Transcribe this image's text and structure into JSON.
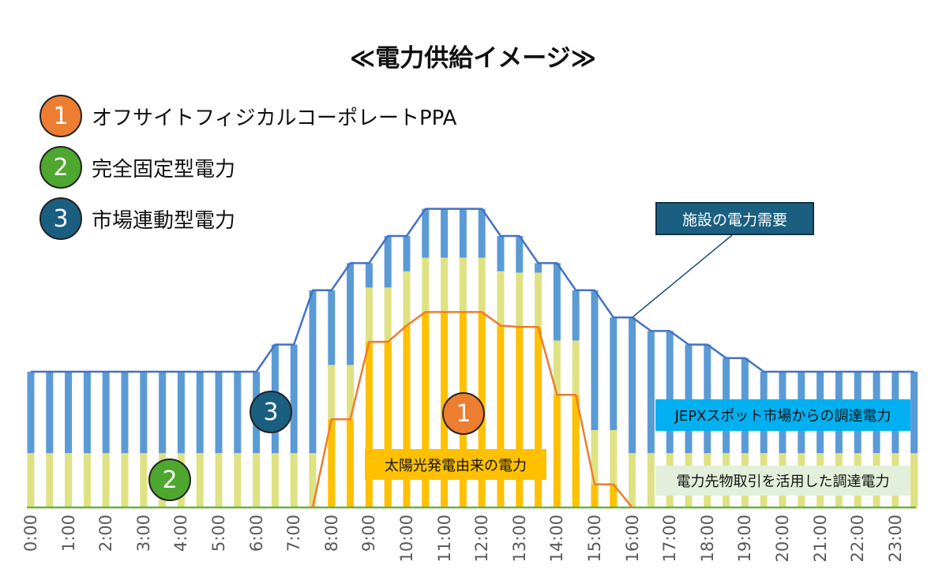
{
  "title": "≪電力供給イメージ≫",
  "legend": [
    {
      "num": "1",
      "label": "オフサイトフィジカルコーポレートPPA",
      "color": "#ed7d31"
    },
    {
      "num": "2",
      "label": "完全固定型電力",
      "color": "#4ea72e"
    },
    {
      "num": "3",
      "label": "市場連動型電力",
      "color": "#1a5f80"
    }
  ],
  "annotations": {
    "demand": "施設の電力需要",
    "spot": "JEPXスポット市場からの調達電力",
    "forward": "電力先物取引を活用した調達電力",
    "solar": "太陽光発電由来の電力"
  },
  "markers": {
    "solar": "1",
    "forward": "2",
    "spot": "3"
  },
  "colors": {
    "spot_bar": "#5b9bd5",
    "forward_bar": "#dfe282",
    "solar_bar": "#ffc000",
    "demand_line": "#4472c4",
    "solar_line": "#ed7d31",
    "baseline": "#70ad47"
  },
  "chart_data": {
    "type": "bar",
    "stacked": true,
    "x": [
      "0:00",
      "0:30",
      "1:00",
      "1:30",
      "2:00",
      "2:30",
      "3:00",
      "3:30",
      "4:00",
      "4:30",
      "5:00",
      "5:30",
      "6:00",
      "6:30",
      "7:00",
      "7:30",
      "8:00",
      "8:30",
      "9:00",
      "9:30",
      "10:00",
      "10:30",
      "11:00",
      "11:30",
      "12:00",
      "12:30",
      "13:00",
      "13:30",
      "14:00",
      "14:30",
      "15:00",
      "15:30",
      "16:00",
      "16:30",
      "17:00",
      "17:30",
      "18:00",
      "18:30",
      "19:00",
      "19:30",
      "20:00",
      "20:30",
      "21:00",
      "21:30",
      "22:00",
      "22:30",
      "23:00",
      "23:30"
    ],
    "tick_labels": [
      "0:00",
      "1:00",
      "2:00",
      "3:00",
      "4:00",
      "5:00",
      "6:00",
      "7:00",
      "8:00",
      "9:00",
      "10:00",
      "11:00",
      "12:00",
      "13:00",
      "14:00",
      "15:00",
      "16:00",
      "17:00",
      "18:00",
      "19:00",
      "20:00",
      "21:00",
      "22:00",
      "23:00"
    ],
    "demand": [
      100,
      100,
      100,
      100,
      100,
      100,
      100,
      100,
      100,
      100,
      100,
      100,
      100,
      120,
      120,
      160,
      160,
      180,
      180,
      200,
      200,
      220,
      220,
      220,
      220,
      200,
      200,
      180,
      180,
      160,
      160,
      140,
      140,
      130,
      130,
      120,
      120,
      110,
      110,
      100,
      100,
      100,
      100,
      100,
      100,
      100,
      100,
      100
    ],
    "solar": [
      0,
      0,
      0,
      0,
      0,
      0,
      0,
      0,
      0,
      0,
      0,
      0,
      0,
      0,
      0,
      0,
      65,
      65,
      122,
      122,
      134,
      144,
      144,
      144,
      144,
      134,
      133,
      133,
      83,
      83,
      17,
      17,
      0,
      0,
      0,
      0,
      0,
      0,
      0,
      0,
      0,
      0,
      0,
      0,
      0,
      0,
      0,
      0
    ],
    "forward": 40,
    "ylim": [
      0,
      220
    ],
    "xlabel": "",
    "ylabel": ""
  }
}
